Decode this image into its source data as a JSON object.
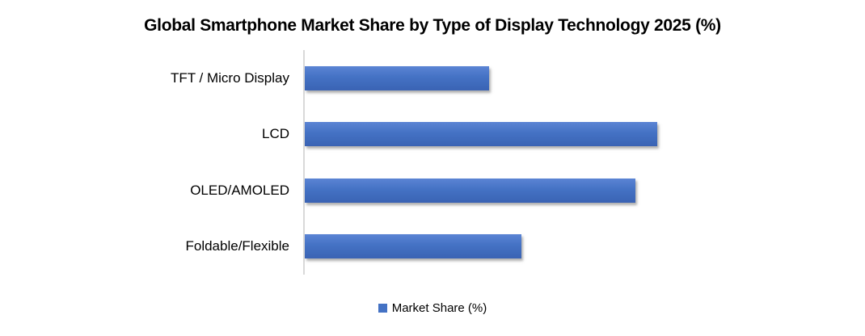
{
  "legend": {
    "label": "Market Share (%)",
    "swatch_color": "#4472c4"
  },
  "colors": {
    "bar_top": "#5b84d4",
    "bar_mid": "#4472c4",
    "bar_bottom": "#3a63b4",
    "axis_line": "#d9d9d9",
    "title_text": "#000000"
  },
  "chart_data": {
    "type": "bar",
    "orientation": "horizontal",
    "title": "Global Smartphone Market Share by Type of Display Technology 2025 (%)",
    "categories": [
      "TFT / Micro Display",
      "LCD",
      "OLED/AMOLED",
      "Foldable/Flexible"
    ],
    "series": [
      {
        "name": "Market Share (%)",
        "values": [
          17,
          32.5,
          30.5,
          20
        ]
      }
    ],
    "xlabel": "",
    "ylabel": "",
    "xlim": [
      0,
      50
    ],
    "grid": false,
    "value_axis_visible": false,
    "legend_position": "bottom",
    "values_estimated_from_bar_lengths": true
  }
}
